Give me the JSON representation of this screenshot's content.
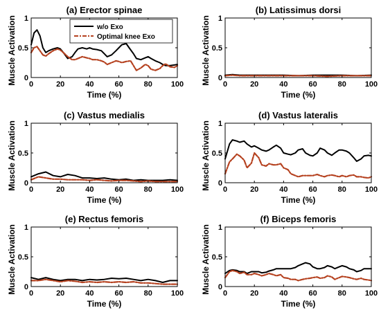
{
  "chart_data": [
    {
      "type": "line",
      "title": "(a) Erector spinae",
      "xlabel": "Time (%)",
      "ylabel": "Muscle Activation",
      "xlim": [
        0,
        100
      ],
      "ylim": [
        0,
        1
      ],
      "xticks": [
        0,
        20,
        40,
        60,
        80,
        100
      ],
      "yticks": [
        0,
        0.5,
        1
      ],
      "legend": "top-right",
      "series": [
        {
          "name": "w/o Exo",
          "color": "#000000",
          "dash": "solid",
          "x": [
            0,
            2,
            4,
            6,
            8,
            10,
            12,
            15,
            18,
            20,
            22,
            25,
            28,
            30,
            32,
            35,
            38,
            40,
            42,
            45,
            48,
            50,
            52,
            55,
            58,
            60,
            62,
            65,
            67,
            70,
            72,
            75,
            78,
            80,
            82,
            85,
            88,
            90,
            92,
            95,
            98,
            100
          ],
          "y": [
            0.55,
            0.75,
            0.8,
            0.7,
            0.5,
            0.42,
            0.45,
            0.48,
            0.5,
            0.48,
            0.42,
            0.32,
            0.35,
            0.42,
            0.48,
            0.5,
            0.48,
            0.5,
            0.48,
            0.47,
            0.45,
            0.4,
            0.35,
            0.38,
            0.45,
            0.5,
            0.55,
            0.57,
            0.5,
            0.4,
            0.32,
            0.3,
            0.33,
            0.35,
            0.32,
            0.28,
            0.25,
            0.22,
            0.2,
            0.2,
            0.21,
            0.22
          ]
        },
        {
          "name": "Optimal knee Exo",
          "color": "#b5411f",
          "dash": "dashdot",
          "x": [
            0,
            2,
            4,
            6,
            8,
            10,
            12,
            15,
            18,
            20,
            22,
            25,
            28,
            30,
            32,
            35,
            38,
            40,
            42,
            45,
            48,
            50,
            52,
            55,
            58,
            60,
            62,
            65,
            68,
            70,
            72,
            75,
            78,
            80,
            82,
            85,
            88,
            90,
            92,
            95,
            98,
            100
          ],
          "y": [
            0.42,
            0.5,
            0.52,
            0.45,
            0.38,
            0.36,
            0.4,
            0.45,
            0.48,
            0.46,
            0.42,
            0.35,
            0.3,
            0.3,
            0.32,
            0.35,
            0.33,
            0.32,
            0.3,
            0.3,
            0.28,
            0.26,
            0.22,
            0.25,
            0.28,
            0.27,
            0.25,
            0.27,
            0.28,
            0.2,
            0.12,
            0.16,
            0.22,
            0.2,
            0.14,
            0.12,
            0.15,
            0.2,
            0.23,
            0.18,
            0.17,
            0.2
          ]
        }
      ]
    },
    {
      "type": "line",
      "title": "(b) Latissimus dorsi",
      "xlabel": "Time (%)",
      "ylabel": "Muscle Activation",
      "xlim": [
        0,
        100
      ],
      "ylim": [
        0,
        1
      ],
      "xticks": [
        0,
        20,
        40,
        60,
        80,
        100
      ],
      "yticks": [
        0,
        0.5,
        1
      ],
      "series": [
        {
          "color": "#000000",
          "dash": "solid",
          "x": [
            0,
            5,
            10,
            20,
            30,
            40,
            50,
            60,
            70,
            80,
            90,
            100
          ],
          "y": [
            0.04,
            0.05,
            0.04,
            0.04,
            0.04,
            0.04,
            0.03,
            0.04,
            0.04,
            0.04,
            0.03,
            0.04
          ]
        },
        {
          "color": "#b5411f",
          "dash": "dashdot",
          "x": [
            0,
            5,
            10,
            20,
            30,
            40,
            50,
            60,
            70,
            80,
            90,
            100
          ],
          "y": [
            0.03,
            0.04,
            0.03,
            0.03,
            0.03,
            0.03,
            0.03,
            0.03,
            0.02,
            0.03,
            0.03,
            0.03
          ]
        }
      ]
    },
    {
      "type": "line",
      "title": "(c) Vastus medialis",
      "xlabel": "Time (%)",
      "ylabel": "Muscle Activation",
      "xlim": [
        0,
        100
      ],
      "ylim": [
        0,
        1
      ],
      "xticks": [
        0,
        20,
        40,
        60,
        80,
        100
      ],
      "yticks": [
        0,
        0.5,
        1
      ],
      "series": [
        {
          "color": "#000000",
          "dash": "solid",
          "x": [
            0,
            5,
            10,
            15,
            20,
            25,
            30,
            35,
            40,
            45,
            50,
            55,
            60,
            65,
            70,
            75,
            80,
            85,
            90,
            95,
            100
          ],
          "y": [
            0.1,
            0.15,
            0.18,
            0.12,
            0.1,
            0.14,
            0.12,
            0.08,
            0.08,
            0.07,
            0.08,
            0.06,
            0.05,
            0.06,
            0.04,
            0.05,
            0.04,
            0.04,
            0.04,
            0.05,
            0.04
          ]
        },
        {
          "color": "#b5411f",
          "dash": "dashdot",
          "x": [
            0,
            5,
            10,
            15,
            20,
            25,
            30,
            35,
            40,
            45,
            50,
            55,
            60,
            65,
            70,
            75,
            80,
            85,
            90,
            95,
            100
          ],
          "y": [
            0.05,
            0.1,
            0.08,
            0.06,
            0.06,
            0.05,
            0.05,
            0.05,
            0.04,
            0.05,
            0.04,
            0.03,
            0.04,
            0.04,
            0.03,
            0.02,
            0.03,
            0.02,
            0.02,
            0.02,
            0.02
          ]
        }
      ]
    },
    {
      "type": "line",
      "title": "(d) Vastus lateralis",
      "xlabel": "Time (%)",
      "ylabel": "Muscle Activation",
      "xlim": [
        0,
        100
      ],
      "ylim": [
        0,
        1
      ],
      "xticks": [
        0,
        20,
        40,
        60,
        80,
        100
      ],
      "yticks": [
        0,
        0.5,
        1
      ],
      "series": [
        {
          "color": "#000000",
          "dash": "solid",
          "x": [
            0,
            3,
            5,
            8,
            10,
            13,
            15,
            18,
            20,
            23,
            25,
            28,
            30,
            33,
            35,
            38,
            40,
            43,
            45,
            48,
            50,
            53,
            55,
            58,
            60,
            63,
            65,
            68,
            70,
            73,
            75,
            78,
            80,
            83,
            85,
            88,
            90,
            93,
            95,
            98,
            100
          ],
          "y": [
            0.4,
            0.65,
            0.72,
            0.7,
            0.68,
            0.7,
            0.65,
            0.6,
            0.62,
            0.58,
            0.55,
            0.53,
            0.55,
            0.6,
            0.63,
            0.58,
            0.5,
            0.48,
            0.47,
            0.5,
            0.55,
            0.57,
            0.5,
            0.46,
            0.45,
            0.5,
            0.58,
            0.55,
            0.5,
            0.46,
            0.5,
            0.55,
            0.55,
            0.53,
            0.5,
            0.42,
            0.36,
            0.4,
            0.45,
            0.46,
            0.45
          ]
        },
        {
          "color": "#b5411f",
          "dash": "dashdot",
          "x": [
            0,
            3,
            5,
            8,
            10,
            13,
            15,
            18,
            20,
            23,
            25,
            28,
            30,
            33,
            35,
            38,
            40,
            43,
            45,
            48,
            50,
            53,
            55,
            58,
            60,
            63,
            65,
            68,
            70,
            73,
            75,
            78,
            80,
            83,
            85,
            88,
            90,
            93,
            95,
            98,
            100
          ],
          "y": [
            0.15,
            0.35,
            0.4,
            0.48,
            0.45,
            0.38,
            0.25,
            0.33,
            0.5,
            0.42,
            0.3,
            0.28,
            0.32,
            0.3,
            0.3,
            0.32,
            0.25,
            0.22,
            0.15,
            0.12,
            0.1,
            0.12,
            0.12,
            0.12,
            0.12,
            0.14,
            0.12,
            0.1,
            0.12,
            0.13,
            0.12,
            0.1,
            0.12,
            0.1,
            0.12,
            0.13,
            0.1,
            0.1,
            0.09,
            0.08,
            0.1
          ]
        }
      ]
    },
    {
      "type": "line",
      "title": "(e) Rectus femoris",
      "xlabel": "Time (%)",
      "ylabel": "Muscle Activation",
      "xlim": [
        0,
        100
      ],
      "ylim": [
        0,
        1
      ],
      "xticks": [
        0,
        20,
        40,
        60,
        80,
        100
      ],
      "yticks": [
        0,
        0.5,
        1
      ],
      "series": [
        {
          "color": "#000000",
          "dash": "solid",
          "x": [
            0,
            5,
            10,
            15,
            20,
            25,
            30,
            35,
            40,
            45,
            50,
            55,
            60,
            65,
            70,
            75,
            80,
            85,
            90,
            95,
            100
          ],
          "y": [
            0.15,
            0.12,
            0.15,
            0.12,
            0.1,
            0.12,
            0.12,
            0.1,
            0.12,
            0.11,
            0.12,
            0.14,
            0.13,
            0.14,
            0.12,
            0.1,
            0.12,
            0.1,
            0.07,
            0.1,
            0.1
          ]
        },
        {
          "color": "#b5411f",
          "dash": "dashdot",
          "x": [
            0,
            5,
            10,
            15,
            20,
            25,
            30,
            35,
            40,
            45,
            50,
            55,
            60,
            65,
            70,
            75,
            80,
            85,
            90,
            95,
            100
          ],
          "y": [
            0.1,
            0.1,
            0.12,
            0.1,
            0.08,
            0.1,
            0.09,
            0.07,
            0.08,
            0.07,
            0.08,
            0.07,
            0.08,
            0.07,
            0.08,
            0.06,
            0.06,
            0.05,
            0.04,
            0.04,
            0.04
          ]
        }
      ]
    },
    {
      "type": "line",
      "title": "(f) Biceps femoris",
      "xlabel": "Time (%)",
      "ylabel": "Muscle Activation",
      "xlim": [
        0,
        100
      ],
      "ylim": [
        0,
        1
      ],
      "xticks": [
        0,
        20,
        40,
        60,
        80,
        100
      ],
      "yticks": [
        0,
        0.5,
        1
      ],
      "series": [
        {
          "color": "#000000",
          "dash": "solid",
          "x": [
            0,
            3,
            5,
            8,
            10,
            13,
            15,
            18,
            20,
            23,
            25,
            28,
            30,
            33,
            35,
            38,
            40,
            43,
            45,
            48,
            50,
            53,
            55,
            58,
            60,
            63,
            65,
            68,
            70,
            73,
            75,
            78,
            80,
            83,
            85,
            88,
            90,
            93,
            95,
            98,
            100
          ],
          "y": [
            0.22,
            0.27,
            0.28,
            0.27,
            0.25,
            0.25,
            0.22,
            0.25,
            0.25,
            0.25,
            0.23,
            0.24,
            0.26,
            0.28,
            0.3,
            0.3,
            0.3,
            0.3,
            0.3,
            0.32,
            0.35,
            0.38,
            0.4,
            0.38,
            0.33,
            0.3,
            0.3,
            0.32,
            0.35,
            0.33,
            0.3,
            0.33,
            0.35,
            0.33,
            0.3,
            0.28,
            0.25,
            0.27,
            0.3,
            0.3,
            0.3
          ]
        },
        {
          "color": "#b5411f",
          "dash": "dashdot",
          "x": [
            0,
            3,
            5,
            8,
            10,
            13,
            15,
            18,
            20,
            23,
            25,
            28,
            30,
            33,
            35,
            38,
            40,
            43,
            45,
            48,
            50,
            53,
            55,
            58,
            60,
            63,
            65,
            68,
            70,
            73,
            75,
            78,
            80,
            83,
            85,
            88,
            90,
            93,
            95,
            98,
            100
          ],
          "y": [
            0.15,
            0.25,
            0.27,
            0.25,
            0.22,
            0.24,
            0.2,
            0.2,
            0.22,
            0.2,
            0.18,
            0.2,
            0.22,
            0.2,
            0.18,
            0.2,
            0.15,
            0.14,
            0.12,
            0.12,
            0.1,
            0.12,
            0.13,
            0.14,
            0.15,
            0.16,
            0.14,
            0.15,
            0.18,
            0.16,
            0.12,
            0.15,
            0.17,
            0.16,
            0.15,
            0.13,
            0.12,
            0.14,
            0.12,
            0.11,
            0.1
          ]
        }
      ]
    }
  ]
}
